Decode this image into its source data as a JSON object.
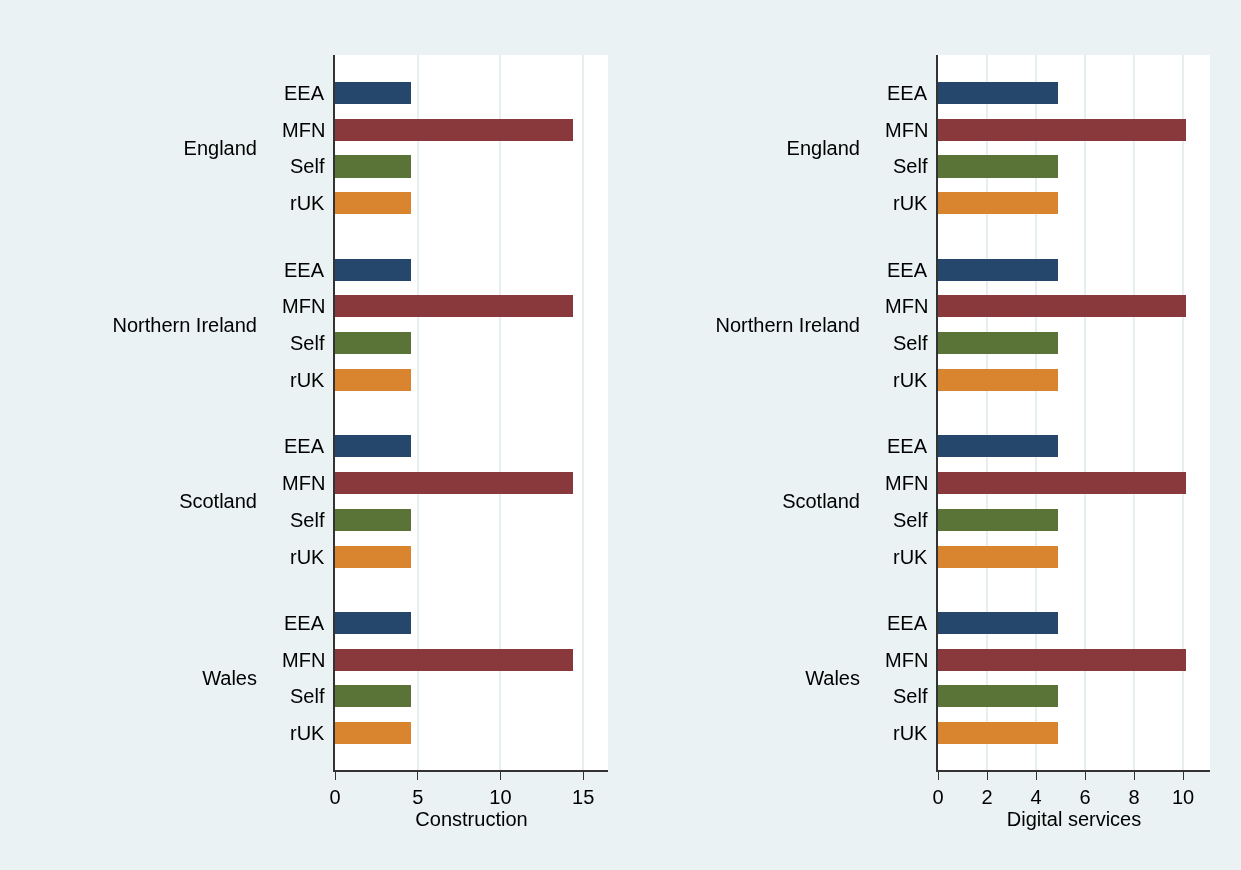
{
  "chart_data": [
    {
      "type": "bar",
      "orientation": "horizontal",
      "xlabel": "Construction",
      "categories": [
        "England",
        "Northern Ireland",
        "Scotland",
        "Wales"
      ],
      "series": [
        {
          "name": "EEA",
          "color": "#25476b",
          "values": [
            4.6,
            4.6,
            4.6,
            4.6
          ]
        },
        {
          "name": "MFN",
          "color": "#89393c",
          "values": [
            14.4,
            14.4,
            14.4,
            14.4
          ]
        },
        {
          "name": "Self",
          "color": "#5a7337",
          "values": [
            4.6,
            4.6,
            4.6,
            4.6
          ]
        },
        {
          "name": "rUK",
          "color": "#d98530",
          "values": [
            4.6,
            4.6,
            4.6,
            4.6
          ]
        }
      ],
      "xlim": [
        0,
        16.5
      ],
      "xticks": [
        0,
        5,
        10,
        15
      ],
      "grid": "x"
    },
    {
      "type": "bar",
      "orientation": "horizontal",
      "xlabel": "Digital services",
      "categories": [
        "England",
        "Northern Ireland",
        "Scotland",
        "Wales"
      ],
      "series": [
        {
          "name": "EEA",
          "color": "#25476b",
          "values": [
            4.9,
            4.9,
            4.9,
            4.9
          ]
        },
        {
          "name": "MFN",
          "color": "#89393c",
          "values": [
            10.1,
            10.1,
            10.1,
            10.1
          ]
        },
        {
          "name": "Self",
          "color": "#5a7337",
          "values": [
            4.9,
            4.9,
            4.9,
            4.9
          ]
        },
        {
          "name": "rUK",
          "color": "#d98530",
          "values": [
            4.9,
            4.9,
            4.9,
            4.9
          ]
        }
      ],
      "xlim": [
        0,
        11.1
      ],
      "xticks": [
        0,
        2,
        4,
        6,
        8,
        10
      ],
      "grid": "x"
    }
  ]
}
